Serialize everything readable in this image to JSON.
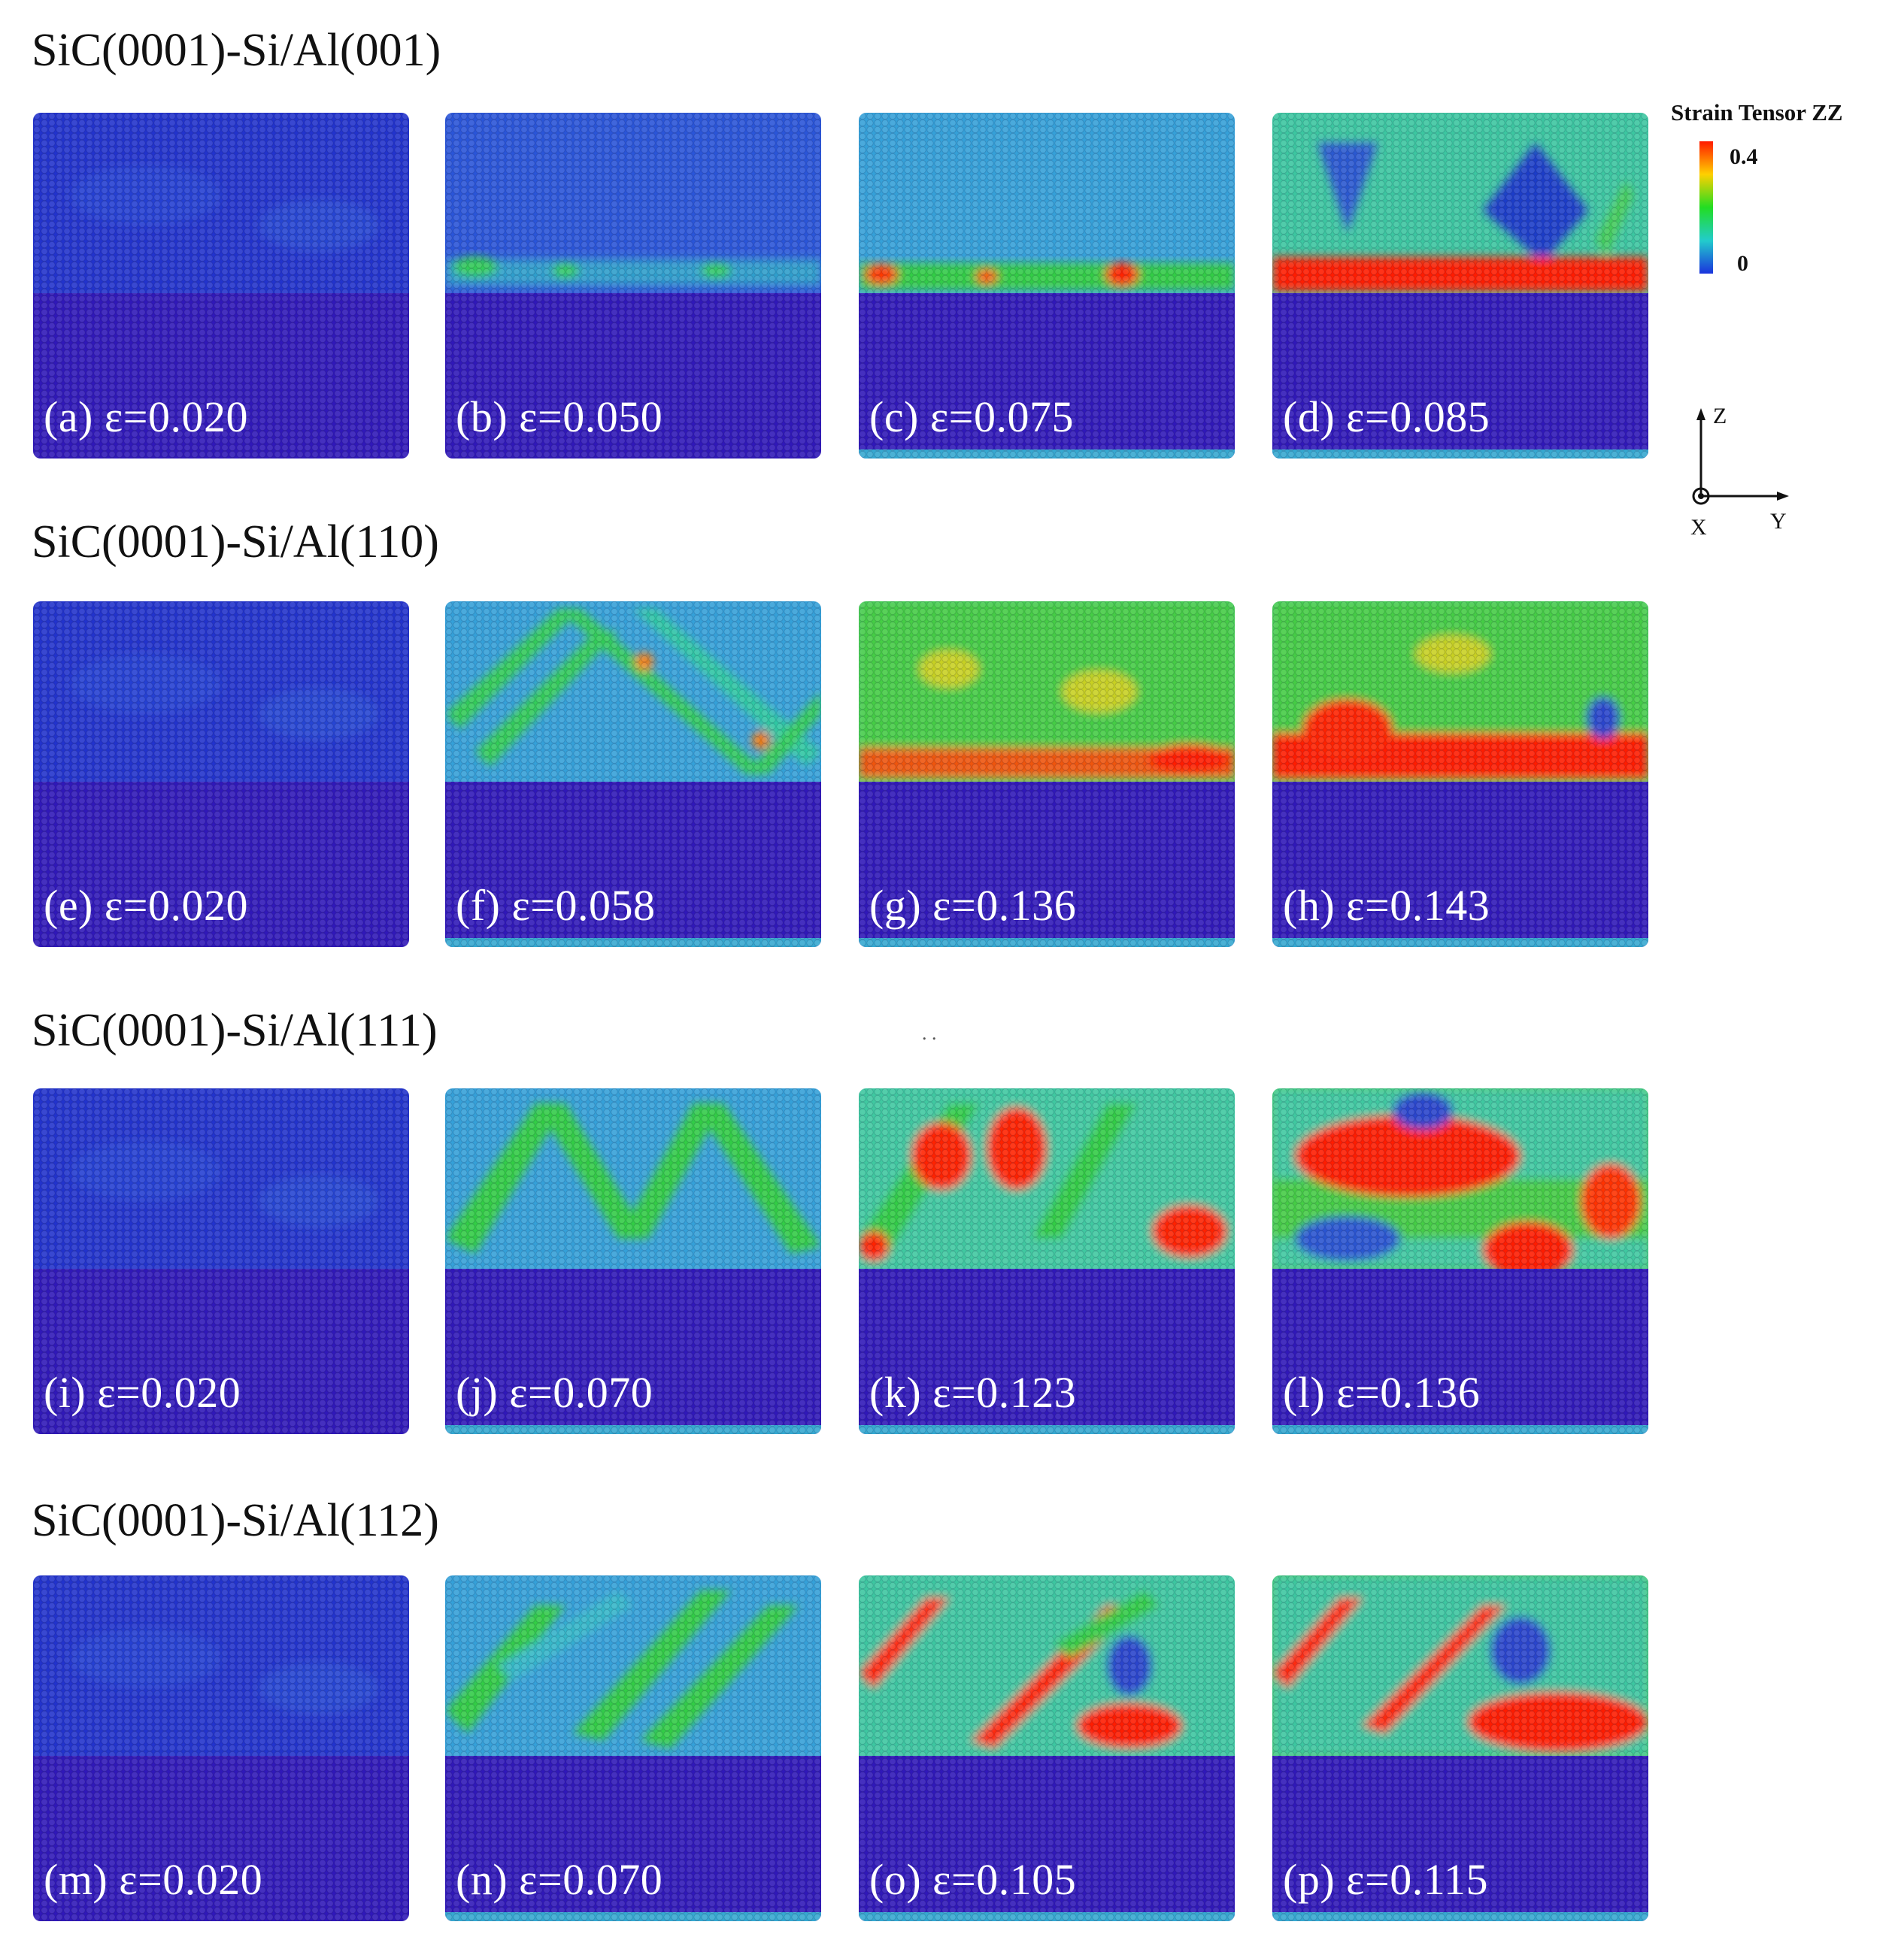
{
  "rows": [
    {
      "title": "SiC(0001)-Si/Al(001)",
      "panels": [
        {
          "label": "(a) ε=0.020",
          "bands": "none",
          "level": 0.05
        },
        {
          "label": "(b) ε=0.050",
          "bands": "weak",
          "level": 0.2
        },
        {
          "label": "(c) ε=0.075",
          "bands": "interface-green",
          "level": 0.3
        },
        {
          "label": "(d) ε=0.085",
          "bands": "interface-red",
          "level": 0.45
        }
      ]
    },
    {
      "title": "SiC(0001)-Si/Al(110)",
      "panels": [
        {
          "label": "(e) ε=0.020",
          "bands": "none",
          "level": 0.05
        },
        {
          "label": "(f) ε=0.058",
          "bands": "crossed",
          "level": 0.3
        },
        {
          "label": "(g) ε=0.136",
          "bands": "green-field",
          "level": 0.6
        },
        {
          "label": "(h) ε=0.143",
          "bands": "green-red",
          "level": 0.7
        }
      ]
    },
    {
      "title": "SiC(0001)-Si/Al(111)",
      "panels": [
        {
          "label": "(i) ε=0.020",
          "bands": "none",
          "level": 0.05
        },
        {
          "label": "(j) ε=0.070",
          "bands": "zigzag",
          "level": 0.3
        },
        {
          "label": "(k) ε=0.123",
          "bands": "zigzag-red",
          "level": 0.55
        },
        {
          "label": "(l) ε=0.136",
          "bands": "blobs-red",
          "level": 0.65
        }
      ]
    },
    {
      "title": "SiC(0001)-Si/Al(112)",
      "panels": [
        {
          "label": "(m) ε=0.020",
          "bands": "none",
          "level": 0.05
        },
        {
          "label": "(n) ε=0.070",
          "bands": "diagonal",
          "level": 0.3
        },
        {
          "label": "(o) ε=0.105",
          "bands": "diagonal-red",
          "level": 0.5
        },
        {
          "label": "(p) ε=0.115",
          "bands": "diagonal-blob",
          "level": 0.6
        }
      ]
    }
  ],
  "legend": {
    "title": "Strain Tensor ZZ",
    "max": "0.4",
    "min": "0",
    "colors": [
      "#ff1a00",
      "#ffd000",
      "#22dd22",
      "#22cccc",
      "#1a33dd"
    ]
  },
  "axes": {
    "z": "Z",
    "x": "X",
    "y": "Y"
  },
  "stray_text": ". ."
}
